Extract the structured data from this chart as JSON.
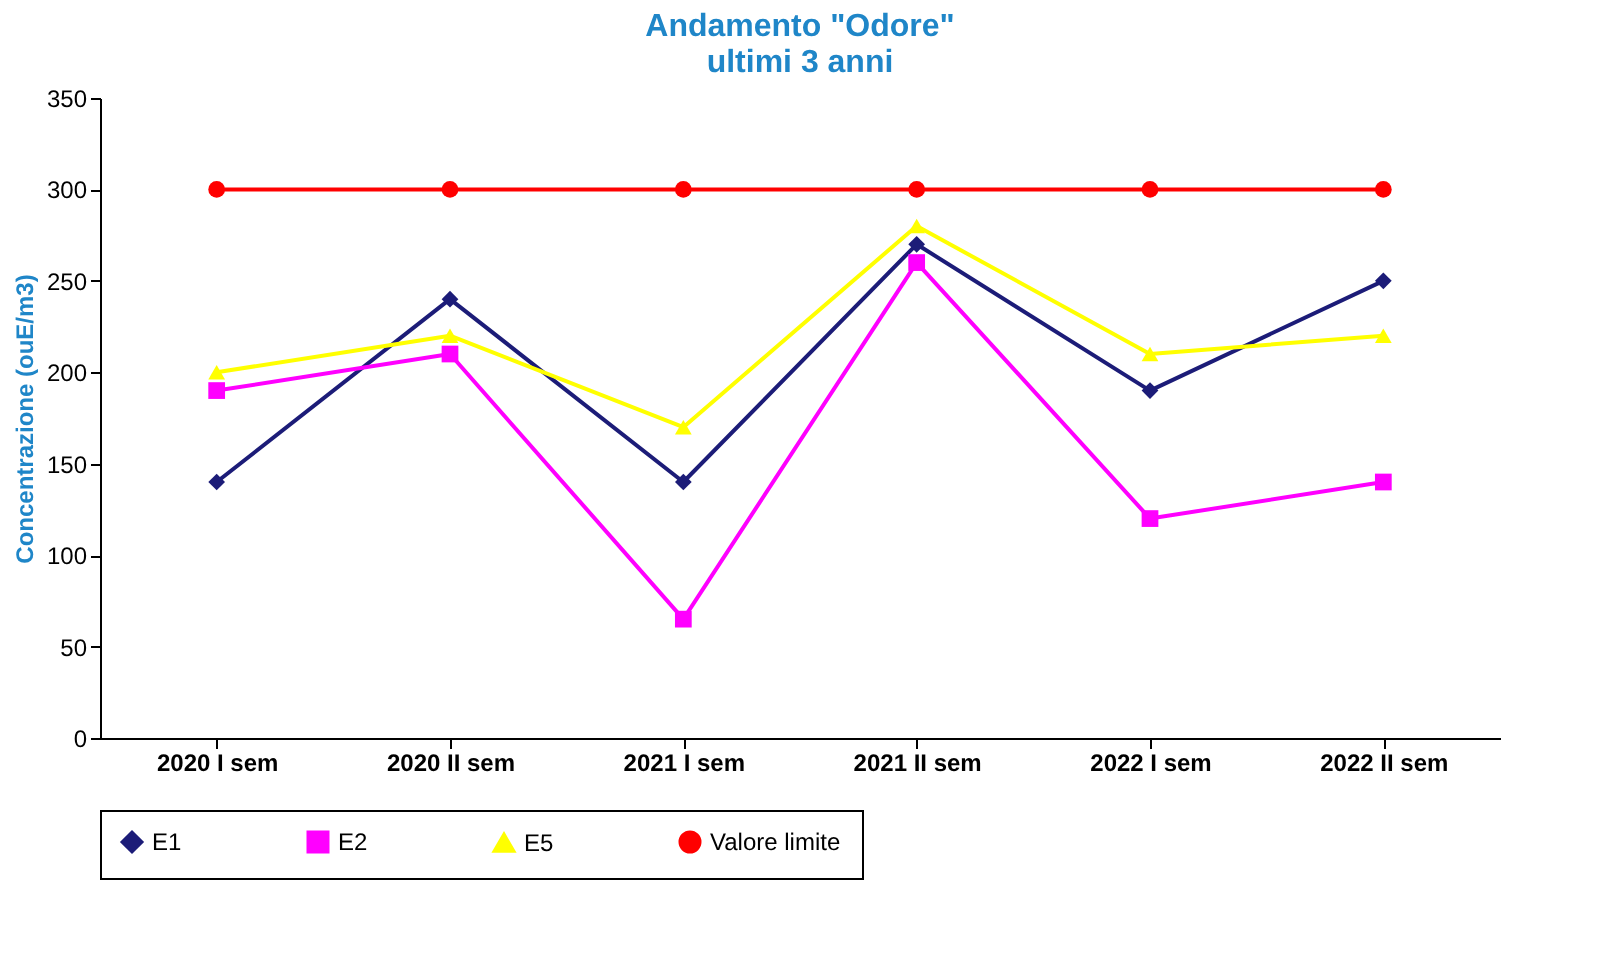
{
  "chart_data": {
    "type": "line",
    "title": "Andamento \"Odore\"\nultimi 3 anni",
    "ylabel": "Concentrazione (ouE/m3)",
    "categories": [
      "2020 I sem",
      "2020 II sem",
      "2021 I sem",
      "2021 II sem",
      "2022 I sem",
      "2022 II sem"
    ],
    "series": [
      {
        "name": "E1",
        "color": "#1c1c78",
        "marker": "diamond",
        "values": [
          140,
          240,
          140,
          270,
          190,
          250
        ]
      },
      {
        "name": "E2",
        "color": "#ff00ff",
        "marker": "square",
        "values": [
          190,
          210,
          65,
          260,
          120,
          140
        ]
      },
      {
        "name": "E5",
        "color": "#ffff00",
        "marker": "triangle",
        "values": [
          200,
          220,
          170,
          280,
          210,
          220
        ]
      },
      {
        "name": "Valore limite",
        "color": "#ff0000",
        "marker": "circle",
        "values": [
          300,
          300,
          300,
          300,
          300,
          300
        ]
      }
    ],
    "ylim": [
      0,
      350
    ],
    "yticks": [
      0,
      50,
      100,
      150,
      200,
      250,
      300,
      350
    ],
    "grid": false,
    "legend": "bottom"
  }
}
